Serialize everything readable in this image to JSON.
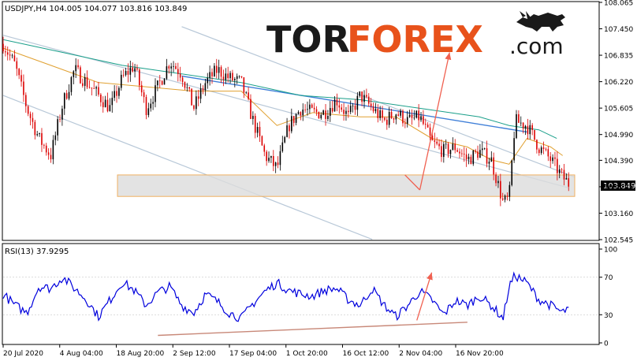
{
  "terminal": {
    "symbol_header": "USDJPY,H4  104.005 104.077 103.816 103.849",
    "current_price_tag": "103.849",
    "rsi_label": "RSI(13) 37.9295"
  },
  "brand": {
    "text_dark": "TOR",
    "text_accent": "FOREX",
    "domain": ".com",
    "accent_color": "#e8521b",
    "dark_color": "#1a1a1a",
    "icon": "bull-icon"
  },
  "colors": {
    "bull_candle": "#000000",
    "bear_candle": "#dd0000",
    "ma_slow": "#1a9f8a",
    "ma_fast": "#e0a030",
    "channel_line": "#b8c8d8",
    "resistance_line": "#3f7fd8",
    "support_zone_fill": "#dcdcdc",
    "support_zone_border": "#f0b060",
    "forecast_arrow": "#f06050",
    "rsi_line": "#0000dd",
    "rsi_trendline": "#c88878"
  },
  "chart_data": [
    {
      "type": "candlestick",
      "symbol": "USDJPY",
      "timeframe": "H4",
      "ohlc_last": {
        "open": 104.005,
        "high": 104.077,
        "low": 103.816,
        "close": 103.849
      },
      "ylim": [
        102.545,
        108.065
      ],
      "y_ticks": [
        "108.065",
        "107.450",
        "106.835",
        "106.220",
        "105.605",
        "104.990",
        "104.390",
        "103.775",
        "103.160",
        "102.545"
      ],
      "x_ticks": [
        "20 Jul 2020",
        "4 Aug 04:00",
        "18 Aug 20:00",
        "2 Sep 12:00",
        "17 Sep 04:00",
        "1 Oct 20:00",
        "16 Oct 12:00",
        "2 Nov 04:00",
        "16 Nov 20:00"
      ],
      "price_path": [
        [
          0,
          107.1
        ],
        [
          2,
          106.6
        ],
        [
          4,
          105.6
        ],
        [
          6,
          104.9
        ],
        [
          8,
          104.5
        ],
        [
          10,
          105.7
        ],
        [
          12,
          106.5
        ],
        [
          14,
          106.2
        ],
        [
          16,
          105.9
        ],
        [
          18,
          105.6
        ],
        [
          20,
          106.3
        ],
        [
          22,
          106.6
        ],
        [
          24,
          105.6
        ],
        [
          26,
          106.1
        ],
        [
          28,
          106.7
        ],
        [
          30,
          106.4
        ],
        [
          32,
          105.6
        ],
        [
          34,
          106.2
        ],
        [
          36,
          106.5
        ],
        [
          38,
          106.3
        ],
        [
          40,
          106.2
        ],
        [
          42,
          105.3
        ],
        [
          44,
          104.5
        ],
        [
          46,
          104.2
        ],
        [
          48,
          105.2
        ],
        [
          50,
          105.6
        ],
        [
          52,
          105.5
        ],
        [
          54,
          105.5
        ],
        [
          56,
          105.8
        ],
        [
          58,
          105.4
        ],
        [
          60,
          105.9
        ],
        [
          62,
          105.6
        ],
        [
          64,
          105.3
        ],
        [
          66,
          105.5
        ],
        [
          68,
          105.3
        ],
        [
          70,
          105.4
        ],
        [
          72,
          104.8
        ],
        [
          74,
          104.6
        ],
        [
          76,
          104.7
        ],
        [
          78,
          104.4
        ],
        [
          80,
          104.6
        ],
        [
          82,
          104.4
        ],
        [
          84,
          103.4
        ],
        [
          85,
          103.5
        ],
        [
          86,
          105.3
        ],
        [
          88,
          105.2
        ],
        [
          90,
          104.7
        ],
        [
          92,
          104.4
        ],
        [
          94,
          104.0
        ],
        [
          95,
          103.849
        ]
      ],
      "ma_slow_path": [
        [
          0,
          107.2
        ],
        [
          10,
          106.9
        ],
        [
          20,
          106.6
        ],
        [
          30,
          106.4
        ],
        [
          40,
          106.2
        ],
        [
          50,
          105.9
        ],
        [
          60,
          105.8
        ],
        [
          70,
          105.6
        ],
        [
          80,
          105.4
        ],
        [
          85,
          105.2
        ],
        [
          90,
          105.1
        ],
        [
          93,
          104.9
        ]
      ],
      "ma_fast_path": [
        [
          0,
          107.0
        ],
        [
          8,
          106.6
        ],
        [
          16,
          106.2
        ],
        [
          24,
          106.1
        ],
        [
          32,
          106.0
        ],
        [
          40,
          106.0
        ],
        [
          46,
          105.2
        ],
        [
          52,
          105.5
        ],
        [
          60,
          105.4
        ],
        [
          66,
          105.4
        ],
        [
          72,
          104.9
        ],
        [
          78,
          104.7
        ],
        [
          82,
          104.4
        ],
        [
          85,
          104.3
        ],
        [
          88,
          104.9
        ],
        [
          92,
          104.7
        ],
        [
          94,
          104.5
        ]
      ],
      "annotations": {
        "support_zone": [
          103.55,
          104.05
        ],
        "resistance_line": [
          [
            30,
            106.35
          ],
          [
            88,
            105.05
          ]
        ],
        "upper_channel": [
          [
            30,
            107.5
          ],
          [
            96,
            104.0
          ]
        ],
        "middle_channel": [
          [
            0,
            107.3
          ],
          [
            95,
            103.75
          ]
        ],
        "lower_channel": [
          [
            0,
            105.9
          ],
          [
            62,
            102.55
          ]
        ],
        "forecast_down": [
          [
            67.5,
            104.05
          ],
          [
            70,
            103.7
          ]
        ],
        "forecast_up": [
          [
            70,
            103.7
          ],
          [
            75,
            106.9
          ]
        ]
      }
    },
    {
      "type": "line",
      "indicator": "RSI",
      "period": 13,
      "last_value": 37.9295,
      "ylim": [
        0,
        100
      ],
      "y_ticks": [
        "100",
        "70",
        "30",
        "0"
      ],
      "levels": [
        30,
        70
      ],
      "rsi_path": [
        [
          0,
          52
        ],
        [
          2,
          40
        ],
        [
          4,
          32
        ],
        [
          6,
          60
        ],
        [
          8,
          58
        ],
        [
          10,
          70
        ],
        [
          12,
          58
        ],
        [
          14,
          46
        ],
        [
          16,
          28
        ],
        [
          18,
          46
        ],
        [
          20,
          65
        ],
        [
          22,
          56
        ],
        [
          24,
          40
        ],
        [
          26,
          54
        ],
        [
          28,
          60
        ],
        [
          30,
          40
        ],
        [
          32,
          32
        ],
        [
          34,
          52
        ],
        [
          36,
          44
        ],
        [
          38,
          32
        ],
        [
          40,
          26
        ],
        [
          42,
          42
        ],
        [
          44,
          55
        ],
        [
          46,
          64
        ],
        [
          48,
          56
        ],
        [
          50,
          52
        ],
        [
          52,
          50
        ],
        [
          54,
          56
        ],
        [
          56,
          58
        ],
        [
          58,
          46
        ],
        [
          60,
          40
        ],
        [
          62,
          58
        ],
        [
          64,
          40
        ],
        [
          66,
          28
        ],
        [
          68,
          40
        ],
        [
          70,
          55
        ],
        [
          72,
          46
        ],
        [
          74,
          30
        ],
        [
          76,
          45
        ],
        [
          78,
          40
        ],
        [
          80,
          50
        ],
        [
          82,
          40
        ],
        [
          84,
          26
        ],
        [
          85,
          60
        ],
        [
          86,
          72
        ],
        [
          88,
          64
        ],
        [
          90,
          46
        ],
        [
          92,
          40
        ],
        [
          94,
          32
        ],
        [
          95,
          37.9
        ]
      ],
      "annotations": {
        "trendline": [
          [
            26,
            8
          ],
          [
            78,
            22
          ]
        ],
        "forecast_arrow": [
          [
            69.5,
            24
          ],
          [
            72,
            75
          ]
        ]
      }
    }
  ]
}
